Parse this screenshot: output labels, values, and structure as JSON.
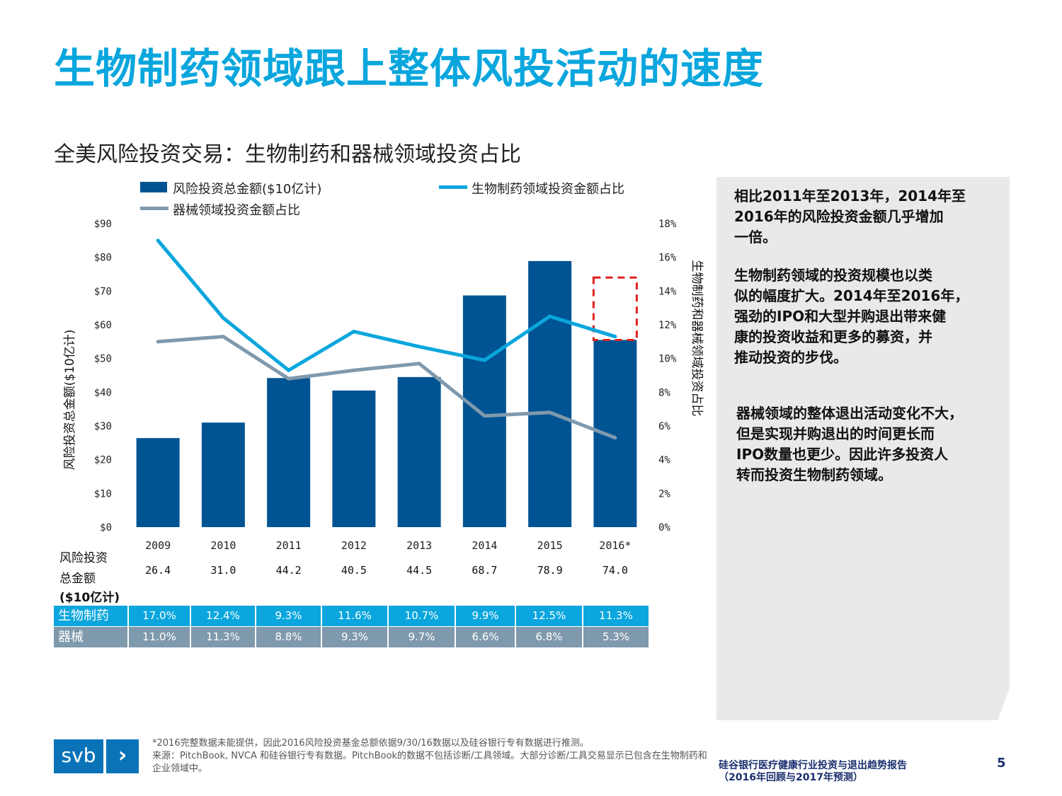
{
  "slide": {
    "title": "生物制药领域跟上整体风投活动的速度",
    "subtitle": "全美风险投资交易：生物制药和器械领域投资占比",
    "page_number": "5"
  },
  "legend": {
    "total": "风险投资总金额($10亿计)",
    "biopharma": "生物制药领域投资金额占比",
    "device": "器械领域投资金额占比"
  },
  "axes": {
    "left_title": "风险投资总金额($10亿计)",
    "right_title": "生物制药和器械领域投资占比"
  },
  "chart_data": {
    "type": "bar",
    "title": "全美风险投资交易：生物制药和器械领域投资占比",
    "categories": [
      "2009",
      "2010",
      "2011",
      "2012",
      "2013",
      "2014",
      "2015",
      "2016*"
    ],
    "series": [
      {
        "name": "风险投资总金额($10亿计)",
        "kind": "bar",
        "axis": "left",
        "color": "#005493",
        "values": [
          26.4,
          31.0,
          44.2,
          40.5,
          44.5,
          68.7,
          78.9,
          74.0
        ]
      },
      {
        "name": "生物制药领域投资金额占比",
        "kind": "line",
        "axis": "right",
        "color": "#0aa6dd",
        "values": [
          17.0,
          12.4,
          9.3,
          11.6,
          10.7,
          9.9,
          12.5,
          11.3
        ]
      },
      {
        "name": "器械领域投资金额占比",
        "kind": "line",
        "axis": "right",
        "color": "#7f99ad",
        "values": [
          11.0,
          11.3,
          8.8,
          9.3,
          9.7,
          6.6,
          6.8,
          5.3
        ]
      }
    ],
    "left_axis": {
      "min": 0,
      "max": 90,
      "step": 10,
      "tick_labels": [
        "$0",
        "$10",
        "$20",
        "$30",
        "$40",
        "$50",
        "$60",
        "$70",
        "$80",
        "$90"
      ]
    },
    "right_axis": {
      "min": 0,
      "max": 18,
      "step": 2,
      "tick_labels": [
        "0%",
        "2%",
        "4%",
        "6%",
        "8%",
        "10%",
        "12%",
        "14%",
        "16%",
        "18%"
      ]
    },
    "displayed_bar_2016": 55.5,
    "projection_box_2016": {
      "from": 55.5,
      "to": 74.0,
      "color": "#e02020",
      "style": "dashed"
    }
  },
  "table": {
    "total_label_lines": [
      "风险投资",
      "总金额",
      "($10亿计)"
    ],
    "total_values": [
      "26.4",
      "31.0",
      "44.2",
      "40.5",
      "44.5",
      "68.7",
      "78.9",
      "74.0"
    ],
    "bio_label": "生物制药",
    "bio_values": [
      "17.0%",
      "12.4%",
      "9.3%",
      "11.6%",
      "10.7%",
      "9.9%",
      "12.5%",
      "11.3%"
    ],
    "device_label": "器械",
    "device_values": [
      "11.0%",
      "11.3%",
      "8.8%",
      "9.3%",
      "9.7%",
      "6.6%",
      "6.8%",
      "5.3%"
    ]
  },
  "side_panel": {
    "p1": "相比2011年至2013年，2014年至\n2016年的风险投资金额几乎增加\n一倍。",
    "p2": "生物制药领域的投资规模也以类\n似的幅度扩大。2014年至2016年，\n强劲的IPO和大型并购退出带来健\n康的投资收益和更多的募资，并\n推动投资的步伐。",
    "p3": "器械领域的整体退出活动变化不大，\n但是实现并购退出的时间更长而\nIPO数量也更少。因此许多投资人\n转而投资生物制药领域。"
  },
  "footer": {
    "footnote_1": "*2016完整数据未能提供，因此2016风险投资基金总额依据9/30/16数据以及硅谷银行专有数据进行推测。",
    "footnote_2": "来源：PitchBook, NVCA 和硅谷银行专有数据。PitchBook的数据不包括诊断/工具领域。大部分诊断/工具交易显示已包含在生物制药和企业领域中。",
    "report_title": "硅谷银行医疗健康行业投资与退出趋势报告\n（2016年回顾与2017年预测）",
    "logo_text": "svb",
    "logo_arrow": "›"
  }
}
